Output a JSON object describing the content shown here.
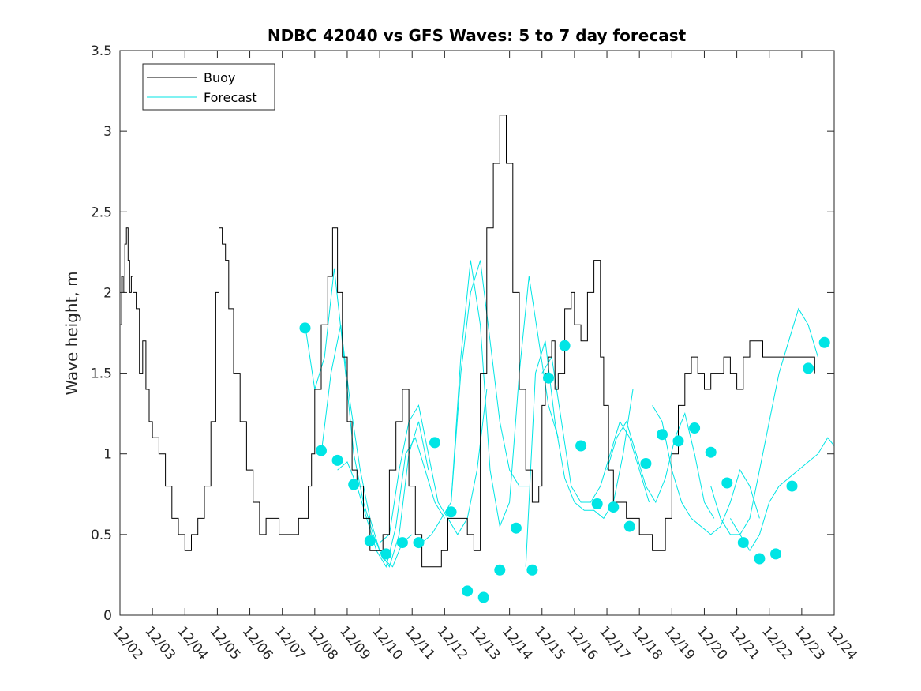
{
  "chart_data": {
    "type": "line",
    "title": "NDBC 42040 vs GFS Waves: 5 to 7 day forecast",
    "xlabel": "",
    "ylabel": "Wave height, m",
    "xlim": [
      0,
      22
    ],
    "ylim": [
      0,
      3.5
    ],
    "yticks": [
      0,
      0.5,
      1,
      1.5,
      2,
      2.5,
      3,
      3.5
    ],
    "ytick_labels": [
      "0",
      "0.5",
      "1",
      "1.5",
      "2",
      "2.5",
      "3",
      "3.5"
    ],
    "xticks": [
      0,
      1,
      2,
      3,
      4,
      5,
      6,
      7,
      8,
      9,
      10,
      11,
      12,
      13,
      14,
      15,
      16,
      17,
      18,
      19,
      20,
      21,
      22
    ],
    "xtick_labels": [
      "12/02",
      "12/03",
      "12/04",
      "12/05",
      "12/06",
      "12/07",
      "12/08",
      "12/09",
      "12/10",
      "12/11",
      "12/12",
      "12/13",
      "12/14",
      "12/15",
      "12/16",
      "12/17",
      "12/18",
      "12/19",
      "12/20",
      "12/21",
      "12/22",
      "12/23",
      "12/24"
    ],
    "legend": {
      "location": "top-left",
      "entries": [
        "Buoy",
        "Forecast"
      ]
    },
    "colors": {
      "buoy": "#000000",
      "forecast": "#00e5e5",
      "axes": "#262626"
    },
    "series": [
      {
        "name": "Buoy",
        "x": [
          0,
          0.05,
          0.1,
          0.15,
          0.2,
          0.25,
          0.3,
          0.35,
          0.4,
          0.5,
          0.6,
          0.7,
          0.8,
          0.9,
          1.0,
          1.2,
          1.4,
          1.6,
          1.8,
          2.0,
          2.2,
          2.4,
          2.6,
          2.8,
          2.95,
          3.05,
          3.15,
          3.25,
          3.35,
          3.5,
          3.7,
          3.9,
          4.1,
          4.3,
          4.5,
          4.7,
          4.9,
          5.1,
          5.3,
          5.5,
          5.7,
          5.8,
          5.9,
          6.0,
          6.2,
          6.4,
          6.55,
          6.7,
          6.85,
          7.0,
          7.15,
          7.3,
          7.5,
          7.7,
          7.9,
          8.1,
          8.3,
          8.5,
          8.7,
          8.9,
          9.1,
          9.3,
          9.5,
          9.7,
          9.9,
          10.1,
          10.3,
          10.5,
          10.7,
          10.9,
          11.1,
          11.3,
          11.5,
          11.7,
          11.9,
          12.1,
          12.3,
          12.5,
          12.7,
          12.8,
          12.9,
          13.0,
          13.1,
          13.2,
          13.3,
          13.4,
          13.5,
          13.7,
          13.9,
          14.0,
          14.2,
          14.4,
          14.6,
          14.8,
          14.9,
          15.05,
          15.2,
          15.4,
          15.6,
          15.8,
          16.0,
          16.2,
          16.4,
          16.6,
          16.8,
          17.0,
          17.2,
          17.4,
          17.6,
          17.8,
          18.0,
          18.2,
          18.4,
          18.6,
          18.8,
          19.0,
          19.2,
          19.4,
          19.6,
          19.8,
          20.0,
          20.2,
          20.4,
          20.6,
          20.8,
          21.0,
          21.2,
          21.4
        ],
        "values": [
          1.8,
          2.1,
          2.0,
          2.3,
          2.4,
          2.2,
          2.0,
          2.1,
          2.0,
          1.9,
          1.5,
          1.7,
          1.4,
          1.2,
          1.1,
          1.0,
          0.8,
          0.6,
          0.5,
          0.4,
          0.5,
          0.6,
          0.8,
          1.2,
          2.0,
          2.4,
          2.3,
          2.2,
          1.9,
          1.5,
          1.2,
          0.9,
          0.7,
          0.5,
          0.6,
          0.6,
          0.5,
          0.5,
          0.5,
          0.6,
          0.6,
          0.8,
          1.0,
          1.4,
          1.8,
          2.1,
          2.4,
          2.0,
          1.6,
          1.2,
          0.9,
          0.8,
          0.6,
          0.4,
          0.4,
          0.5,
          0.9,
          1.2,
          1.4,
          0.8,
          0.5,
          0.3,
          0.3,
          0.3,
          0.4,
          0.6,
          0.6,
          0.6,
          0.5,
          0.4,
          1.5,
          2.4,
          2.8,
          3.1,
          2.8,
          2.0,
          1.4,
          0.9,
          0.7,
          0.7,
          0.8,
          1.3,
          1.5,
          1.6,
          1.7,
          1.4,
          1.5,
          1.9,
          2.0,
          1.8,
          1.7,
          2.0,
          2.2,
          1.6,
          1.3,
          0.9,
          0.7,
          0.7,
          0.6,
          0.6,
          0.5,
          0.5,
          0.4,
          0.4,
          0.6,
          1.0,
          1.3,
          1.5,
          1.6,
          1.5,
          1.4,
          1.5,
          1.5,
          1.6,
          1.5,
          1.4,
          1.6,
          1.7,
          1.7,
          1.6,
          1.6,
          1.6,
          1.6,
          1.6,
          1.6,
          1.6,
          1.6,
          1.5
        ]
      },
      {
        "name": "Forecast",
        "lines": [
          {
            "x": [
              5.7,
              6.0,
              6.3,
              6.6,
              6.9,
              7.2,
              7.5,
              7.8,
              8.1,
              8.4,
              8.7,
              9.0
            ],
            "values": [
              1.8,
              1.4,
              1.6,
              2.15,
              1.6,
              1.0,
              0.7,
              0.5,
              0.35,
              0.3,
              0.45,
              0.5
            ]
          },
          {
            "x": [
              6.2,
              6.5,
              6.8,
              7.1,
              7.4,
              7.7,
              8.0,
              8.3,
              8.6,
              8.9,
              9.2,
              9.5
            ],
            "values": [
              1.0,
              1.5,
              1.8,
              1.3,
              0.9,
              0.6,
              0.4,
              0.3,
              0.5,
              1.0,
              1.2,
              0.9
            ]
          },
          {
            "x": [
              6.7,
              7.0,
              7.3,
              7.6,
              7.9,
              8.2,
              8.5,
              8.8,
              9.1,
              9.4,
              9.7,
              10.0
            ],
            "values": [
              0.9,
              0.95,
              0.8,
              0.6,
              0.4,
              0.3,
              0.55,
              1.0,
              1.1,
              0.9,
              0.7,
              0.6
            ]
          },
          {
            "x": [
              8.0,
              8.3,
              8.6,
              8.9,
              9.2,
              9.5,
              9.8,
              10.1,
              10.4,
              10.7,
              11.0,
              11.3
            ],
            "values": [
              0.45,
              0.5,
              0.9,
              1.2,
              1.3,
              1.0,
              0.7,
              0.6,
              0.5,
              0.6,
              0.9,
              1.4
            ]
          },
          {
            "x": [
              9.3,
              9.6,
              9.9,
              10.2,
              10.5,
              10.8,
              11.1,
              11.4,
              11.7,
              12.0,
              12.3,
              12.6
            ],
            "values": [
              0.45,
              0.5,
              0.6,
              0.7,
              1.5,
              2.0,
              2.2,
              1.7,
              1.2,
              0.9,
              0.8,
              0.8
            ]
          },
          {
            "x": [
              10.2,
              10.5,
              10.8,
              11.1,
              11.4,
              11.7,
              12.0,
              12.3,
              12.6,
              12.9,
              13.2,
              13.5
            ],
            "values": [
              0.7,
              1.6,
              2.2,
              1.8,
              0.9,
              0.55,
              0.7,
              1.5,
              2.1,
              1.7,
              1.3,
              1.1
            ]
          },
          {
            "x": [
              12.5,
              12.8,
              13.1,
              13.4,
              13.7,
              14.0,
              14.3,
              14.6,
              14.9,
              15.2,
              15.5,
              15.8
            ],
            "values": [
              0.3,
              1.5,
              1.7,
              1.2,
              0.85,
              0.7,
              0.65,
              0.65,
              0.6,
              0.7,
              1.0,
              1.4
            ]
          },
          {
            "x": [
              13.0,
              13.3,
              13.6,
              13.9,
              14.2,
              14.5,
              14.8,
              15.1,
              15.4,
              15.7,
              16.0,
              16.3
            ],
            "values": [
              1.5,
              1.6,
              1.2,
              0.8,
              0.7,
              0.7,
              0.8,
              1.0,
              1.2,
              1.1,
              0.9,
              0.7
            ]
          },
          {
            "x": [
              15.0,
              15.3,
              15.6,
              15.9,
              16.2,
              16.5,
              16.8,
              17.1,
              17.4,
              17.7,
              18.0,
              18.3
            ],
            "values": [
              0.9,
              1.1,
              1.2,
              1.0,
              0.8,
              0.7,
              0.85,
              1.1,
              1.25,
              1.0,
              0.7,
              0.6
            ]
          },
          {
            "x": [
              16.4,
              16.7,
              17.0,
              17.3,
              17.6,
              17.9,
              18.2,
              18.5,
              18.8,
              19.1,
              19.4,
              19.7
            ],
            "values": [
              1.3,
              1.2,
              0.9,
              0.7,
              0.6,
              0.55,
              0.5,
              0.55,
              0.7,
              0.9,
              0.8,
              0.6
            ]
          },
          {
            "x": [
              18.2,
              18.5,
              18.8,
              19.1,
              19.4,
              19.7,
              20.0,
              20.3,
              20.6,
              20.9,
              21.2,
              21.5
            ],
            "values": [
              0.8,
              0.6,
              0.5,
              0.5,
              0.6,
              0.9,
              1.2,
              1.5,
              1.7,
              1.9,
              1.8,
              1.6
            ]
          },
          {
            "x": [
              18.8,
              19.1,
              19.4,
              19.7,
              20.0,
              20.3,
              20.6,
              20.9,
              21.2,
              21.5,
              21.8,
              22.0
            ],
            "values": [
              0.6,
              0.5,
              0.4,
              0.5,
              0.7,
              0.8,
              0.85,
              0.9,
              0.95,
              1.0,
              1.1,
              1.05
            ]
          }
        ],
        "markers": {
          "x": [
            5.7,
            6.2,
            6.7,
            7.2,
            7.7,
            8.2,
            8.7,
            9.2,
            9.7,
            10.2,
            10.7,
            11.2,
            11.7,
            12.2,
            12.7,
            13.2,
            13.7,
            14.2,
            14.7,
            15.2,
            15.7,
            16.2,
            16.7,
            17.2,
            17.7,
            18.2,
            18.7,
            19.2,
            19.7,
            20.2,
            20.7,
            21.2
          ],
          "values": [
            1.78,
            1.02,
            0.96,
            0.81,
            0.46,
            0.38,
            0.45,
            0.45,
            1.07,
            0.64,
            0.15,
            0.11,
            0.28,
            0.54,
            0.28,
            1.47,
            1.67,
            1.05,
            0.69,
            0.67,
            0.55,
            0.94,
            1.12,
            1.08,
            1.16,
            1.01,
            0.82,
            0.45,
            0.35,
            0.38,
            0.8,
            1.53
          ]
        },
        "marker_extra": {
          "x": [
            21.7
          ],
          "values": [
            1.69
          ]
        }
      }
    ]
  }
}
